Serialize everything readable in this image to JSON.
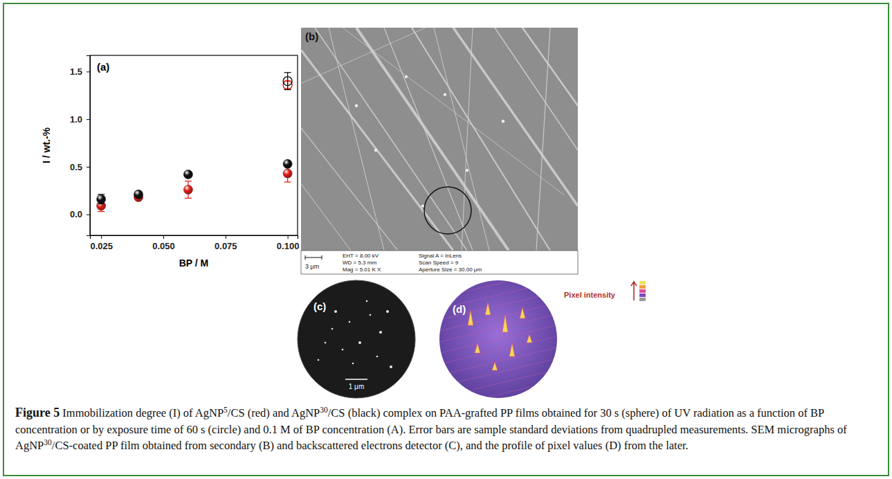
{
  "chart_data": {
    "type": "scatter",
    "panel_label": "(a)",
    "x_label": "BP / M",
    "y_label": "I / wt.-%",
    "xlim": [
      0.0205,
      0.104
    ],
    "xticks": [
      0.025,
      {
        "value": 0.05,
        "label": "0.050"
      },
      0.075,
      {
        "value": 0.1,
        "label": "0.100"
      }
    ],
    "ylim": [
      -0.22,
      1.67
    ],
    "yticks": [
      {
        "value": 0,
        "label": "0.0"
      },
      0.5,
      {
        "value": 1,
        "label": "1.0"
      },
      1.5
    ],
    "series": [
      {
        "color": "#e3211c",
        "marker": "sphere",
        "x": [
          0.025,
          0.04,
          0.06,
          0.1
        ],
        "values": [
          0.09,
          0.18,
          0.26,
          0.43
        ],
        "errors": [
          0.06,
          0.015,
          0.09,
          0.09
        ]
      },
      {
        "color": "#111111",
        "marker": "sphere",
        "x": [
          0.025,
          0.04,
          0.06,
          0.1
        ],
        "values": [
          0.16,
          0.21,
          0.42,
          0.53
        ],
        "errors": [
          0.05,
          0.01,
          0.01,
          0.01
        ]
      },
      {
        "color": "#e3211c",
        "marker": "circle-open",
        "x": [
          0.1
        ],
        "values": [
          1.36
        ],
        "errors": [
          0.04
        ]
      },
      {
        "color": "#111111",
        "marker": "circle-open",
        "x": [
          0.1
        ],
        "values": [
          1.4
        ],
        "errors": [
          0.09
        ]
      }
    ]
  },
  "panels": {
    "b": {
      "label": "(b)",
      "scale_bar": "3 μm",
      "info": [
        [
          "EHT = 8.00 kV",
          "WD = 5.3 mm",
          "Mag = 5.01 K X"
        ],
        [
          "Signal A = InLens",
          "Scan Speed = 9",
          "Aperture Size = 30.00 μm"
        ]
      ]
    },
    "c": {
      "label": "(c)",
      "scale_bar": "1 μm"
    },
    "d": {
      "label": "(d)",
      "legend_title": "Pixel intensity"
    }
  },
  "caption": {
    "label": "Figure 5",
    "runs": [
      "Immobilization degree (I) of AgNP",
      {
        "sup": "5"
      },
      "/CS (red) and AgNP",
      {
        "sup": "30"
      },
      "/CS (black) complex on PAA-grafted PP films obtained for 30 s (sphere) of UV radiation as a function of BP concentration or by exposure time of 60 s (circle) and 0.1 M of BP concentration (A). Error bars are sample standard deviations from quadrupled measurements. SEM micrographs of AgNP",
      {
        "sup": "30"
      },
      "/CS-coated PP film obtained from secondary (B) and backscattered electrons detector (C), and the profile of pixel values (D) from the later."
    ]
  }
}
